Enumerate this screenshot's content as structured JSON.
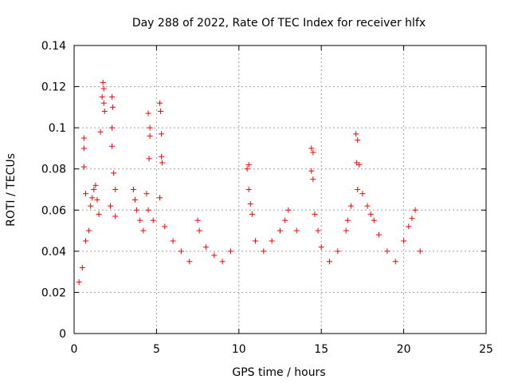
{
  "chart_data": {
    "type": "scatter",
    "title": "Day 288 of 2022, Rate Of TEC Index for receiver hlfx",
    "xlabel": "GPS time / hours",
    "ylabel": "ROTI / TECUs",
    "xlim": [
      0,
      25
    ],
    "ylim": [
      0,
      0.14
    ],
    "xticks": [
      0,
      5,
      10,
      15,
      20,
      25
    ],
    "xtick_labels": [
      "0",
      "5",
      "10",
      "15",
      "20",
      "25"
    ],
    "yticks": [
      0,
      0.02,
      0.04,
      0.06,
      0.08,
      0.1,
      0.12,
      0.14
    ],
    "ytick_labels": [
      "0",
      "0.02",
      "0.04",
      "0.06",
      "0.08",
      "0.1",
      "0.12",
      "0.14"
    ],
    "grid": true,
    "marker": "+",
    "colors": {
      "series": "#ff0000",
      "grid": "#a0a0a0",
      "axis": "#000000"
    },
    "series": [
      {
        "points": [
          [
            0.3,
            0.025
          ],
          [
            0.5,
            0.032
          ],
          [
            0.7,
            0.045
          ],
          [
            0.9,
            0.05
          ],
          [
            1.0,
            0.062
          ],
          [
            1.1,
            0.066
          ],
          [
            1.2,
            0.07
          ],
          [
            1.3,
            0.072
          ],
          [
            1.4,
            0.065
          ],
          [
            1.5,
            0.058
          ],
          [
            0.6,
            0.09
          ],
          [
            0.6,
            0.095
          ],
          [
            0.6,
            0.081
          ],
          [
            0.7,
            0.068
          ],
          [
            1.6,
            0.098
          ],
          [
            1.7,
            0.115
          ],
          [
            1.75,
            0.122
          ],
          [
            1.8,
            0.119
          ],
          [
            1.8,
            0.112
          ],
          [
            1.85,
            0.108
          ],
          [
            2.3,
            0.115
          ],
          [
            2.35,
            0.11
          ],
          [
            2.3,
            0.1
          ],
          [
            2.3,
            0.091
          ],
          [
            2.4,
            0.078
          ],
          [
            2.2,
            0.062
          ],
          [
            2.5,
            0.07
          ],
          [
            2.5,
            0.057
          ],
          [
            3.6,
            0.07
          ],
          [
            3.7,
            0.065
          ],
          [
            3.8,
            0.06
          ],
          [
            4.0,
            0.055
          ],
          [
            4.2,
            0.05
          ],
          [
            4.4,
            0.068
          ],
          [
            4.5,
            0.107
          ],
          [
            4.6,
            0.1
          ],
          [
            4.6,
            0.096
          ],
          [
            4.55,
            0.085
          ],
          [
            4.5,
            0.06
          ],
          [
            4.8,
            0.055
          ],
          [
            5.2,
            0.112
          ],
          [
            5.25,
            0.108
          ],
          [
            5.3,
            0.097
          ],
          [
            5.3,
            0.086
          ],
          [
            5.35,
            0.083
          ],
          [
            5.2,
            0.066
          ],
          [
            5.5,
            0.052
          ],
          [
            6.0,
            0.045
          ],
          [
            6.5,
            0.04
          ],
          [
            7.0,
            0.035
          ],
          [
            7.5,
            0.055
          ],
          [
            7.6,
            0.05
          ],
          [
            8.0,
            0.042
          ],
          [
            8.5,
            0.038
          ],
          [
            9.0,
            0.035
          ],
          [
            9.5,
            0.04
          ],
          [
            10.5,
            0.08
          ],
          [
            10.6,
            0.07
          ],
          [
            10.7,
            0.063
          ],
          [
            10.6,
            0.082
          ],
          [
            10.8,
            0.058
          ],
          [
            11.0,
            0.045
          ],
          [
            11.5,
            0.04
          ],
          [
            12.0,
            0.045
          ],
          [
            12.5,
            0.05
          ],
          [
            12.8,
            0.055
          ],
          [
            13.0,
            0.06
          ],
          [
            13.5,
            0.05
          ],
          [
            14.4,
            0.09
          ],
          [
            14.5,
            0.088
          ],
          [
            14.4,
            0.079
          ],
          [
            14.5,
            0.075
          ],
          [
            14.6,
            0.058
          ],
          [
            14.8,
            0.05
          ],
          [
            15.0,
            0.042
          ],
          [
            15.5,
            0.035
          ],
          [
            16.0,
            0.04
          ],
          [
            16.5,
            0.05
          ],
          [
            16.6,
            0.055
          ],
          [
            16.8,
            0.062
          ],
          [
            17.1,
            0.097
          ],
          [
            17.2,
            0.094
          ],
          [
            17.15,
            0.083
          ],
          [
            17.3,
            0.082
          ],
          [
            17.2,
            0.07
          ],
          [
            17.5,
            0.068
          ],
          [
            17.8,
            0.062
          ],
          [
            18.0,
            0.058
          ],
          [
            18.2,
            0.055
          ],
          [
            18.5,
            0.048
          ],
          [
            19.0,
            0.04
          ],
          [
            19.5,
            0.035
          ],
          [
            20.0,
            0.045
          ],
          [
            20.3,
            0.052
          ],
          [
            20.5,
            0.056
          ],
          [
            20.7,
            0.06
          ],
          [
            21.0,
            0.04
          ]
        ]
      }
    ]
  }
}
